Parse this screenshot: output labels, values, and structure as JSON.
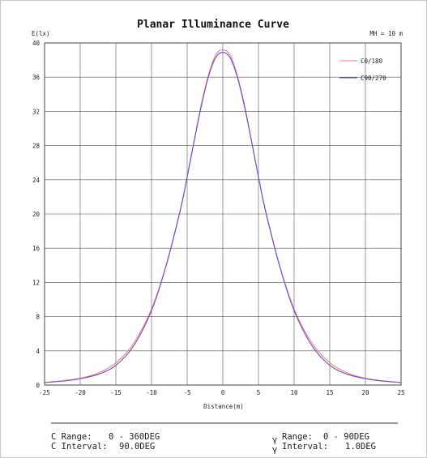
{
  "chart_data": {
    "type": "line",
    "title": "Planar Illuminance Curve",
    "ylabel": "E(lx)",
    "xlabel": "Distance(m)",
    "mh_label": "MH = 10 m",
    "xlim": [
      -25,
      25
    ],
    "ylim": [
      0,
      40
    ],
    "x_ticks": [
      -25,
      -20,
      -15,
      -10,
      -5,
      0,
      5,
      10,
      15,
      20,
      25
    ],
    "y_ticks": [
      0,
      4,
      8,
      12,
      16,
      20,
      24,
      28,
      32,
      36,
      40
    ],
    "grid": true,
    "legend_position": "top-right",
    "x": [
      -25,
      -22.5,
      -20,
      -17.5,
      -15,
      -12.5,
      -10,
      -8,
      -6,
      -5,
      -4,
      -3,
      -2,
      -1,
      0,
      1,
      2,
      3,
      4,
      5,
      6,
      8,
      10,
      12.5,
      15,
      17.5,
      20,
      22.5,
      25
    ],
    "series": [
      {
        "name": "C0/180",
        "color": "#f08080",
        "values": [
          0.3,
          0.5,
          0.8,
          1.4,
          2.6,
          4.9,
          8.9,
          13.9,
          20.4,
          24.4,
          28.7,
          32.9,
          36.3,
          38.6,
          39.2,
          38.6,
          36.3,
          32.9,
          28.7,
          24.4,
          20.4,
          13.9,
          8.9,
          4.9,
          2.6,
          1.4,
          0.8,
          0.5,
          0.3
        ]
      },
      {
        "name": "C90/270",
        "color": "#6a50d0",
        "values": [
          0.3,
          0.45,
          0.75,
          1.25,
          2.3,
          4.6,
          8.7,
          13.8,
          20.3,
          24.3,
          28.6,
          32.7,
          36.1,
          38.3,
          38.9,
          38.3,
          36.1,
          32.7,
          28.6,
          24.3,
          20.3,
          13.8,
          8.7,
          4.6,
          2.3,
          1.25,
          0.75,
          0.45,
          0.3
        ]
      }
    ]
  },
  "footer": {
    "c_range_label": "C Range:",
    "c_range_value": "0 - 360DEG",
    "c_interval_label": "C Interval:",
    "c_interval_value": "90.0DEG",
    "gamma_symbol": "γ",
    "g_range_label": "Range:",
    "g_range_value": "0 -  90DEG",
    "g_interval_label": "Interval:",
    "g_interval_value": "1.0DEG"
  }
}
